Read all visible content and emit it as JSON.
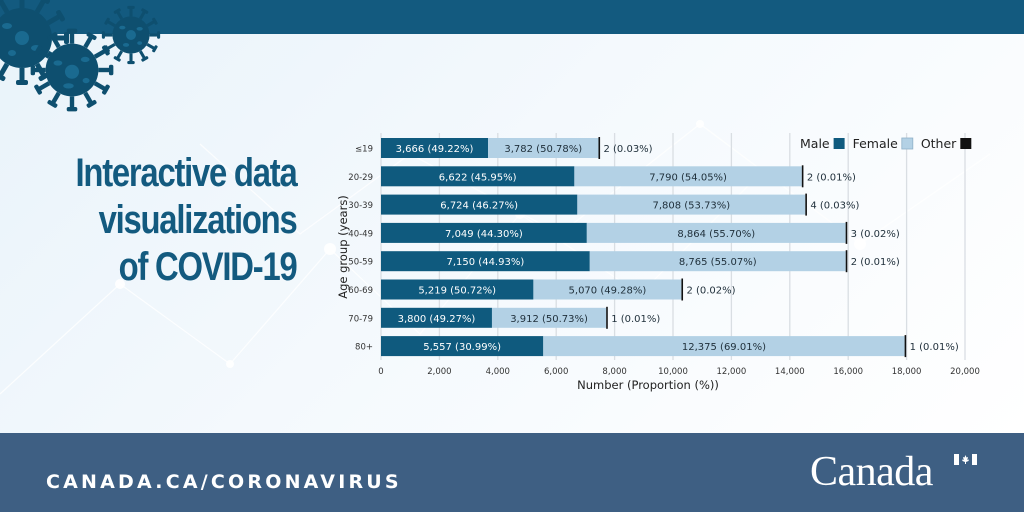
{
  "header": {
    "band_color": "#135a7f"
  },
  "title": {
    "lines": [
      "Interactive data",
      "visualizations",
      "of COVID-19"
    ],
    "color": "#135a7f"
  },
  "footer": {
    "url": "CANADA.CA/CORONAVIRUS",
    "wordmark": "Canada",
    "background": "#3e5f83"
  },
  "decor": {
    "icons": [
      "virus-icon",
      "virus-icon",
      "virus-icon"
    ]
  },
  "chart_data": {
    "type": "bar",
    "orientation": "horizontal",
    "stacked": true,
    "title": "",
    "xlabel": "Number (Proportion (%))",
    "ylabel": "Age group (years)",
    "xlim": [
      0,
      20000
    ],
    "xticks": [
      0,
      2000,
      4000,
      6000,
      8000,
      10000,
      12000,
      14000,
      16000,
      18000,
      20000
    ],
    "xtick_labels": [
      "0",
      "2,000",
      "4,000",
      "6,000",
      "8,000",
      "10,000",
      "12,000",
      "14,000",
      "16,000",
      "18,000",
      "20,000"
    ],
    "grid": "vertical",
    "legend_position": "top-right",
    "categories": [
      "≤19",
      "20-29",
      "30-39",
      "40-49",
      "50-59",
      "60-69",
      "70-79",
      "80+"
    ],
    "series": [
      {
        "name": "Male",
        "color": "#0f5a7e",
        "values": [
          3666,
          6622,
          6724,
          7049,
          7150,
          5219,
          3800,
          5557
        ],
        "labels": [
          "3,666 (49.22%)",
          "6,622 (45.95%)",
          "6,724 (46.27%)",
          "7,049 (44.30%)",
          "7,150 (44.93%)",
          "5,219 (50.72%)",
          "3,800 (49.27%)",
          "5,557 (30.99%)"
        ]
      },
      {
        "name": "Female",
        "color": "#b3d1e5",
        "values": [
          3782,
          7790,
          7808,
          8864,
          8765,
          5070,
          3912,
          12375
        ],
        "labels": [
          "3,782 (50.78%)",
          "7,790 (54.05%)",
          "7,808 (53.73%)",
          "8,864 (55.70%)",
          "8,765 (55.07%)",
          "5,070 (49.28%)",
          "3,912 (50.73%)",
          "12,375 (69.01%)"
        ]
      },
      {
        "name": "Other",
        "color": "#111111",
        "values": [
          2,
          2,
          4,
          3,
          2,
          2,
          1,
          1
        ],
        "labels": [
          "2 (0.03%)",
          "2 (0.01%)",
          "4 (0.03%)",
          "3 (0.02%)",
          "2 (0.01%)",
          "2 (0.02%)",
          "1 (0.01%)",
          "1 (0.01%)"
        ]
      }
    ]
  }
}
